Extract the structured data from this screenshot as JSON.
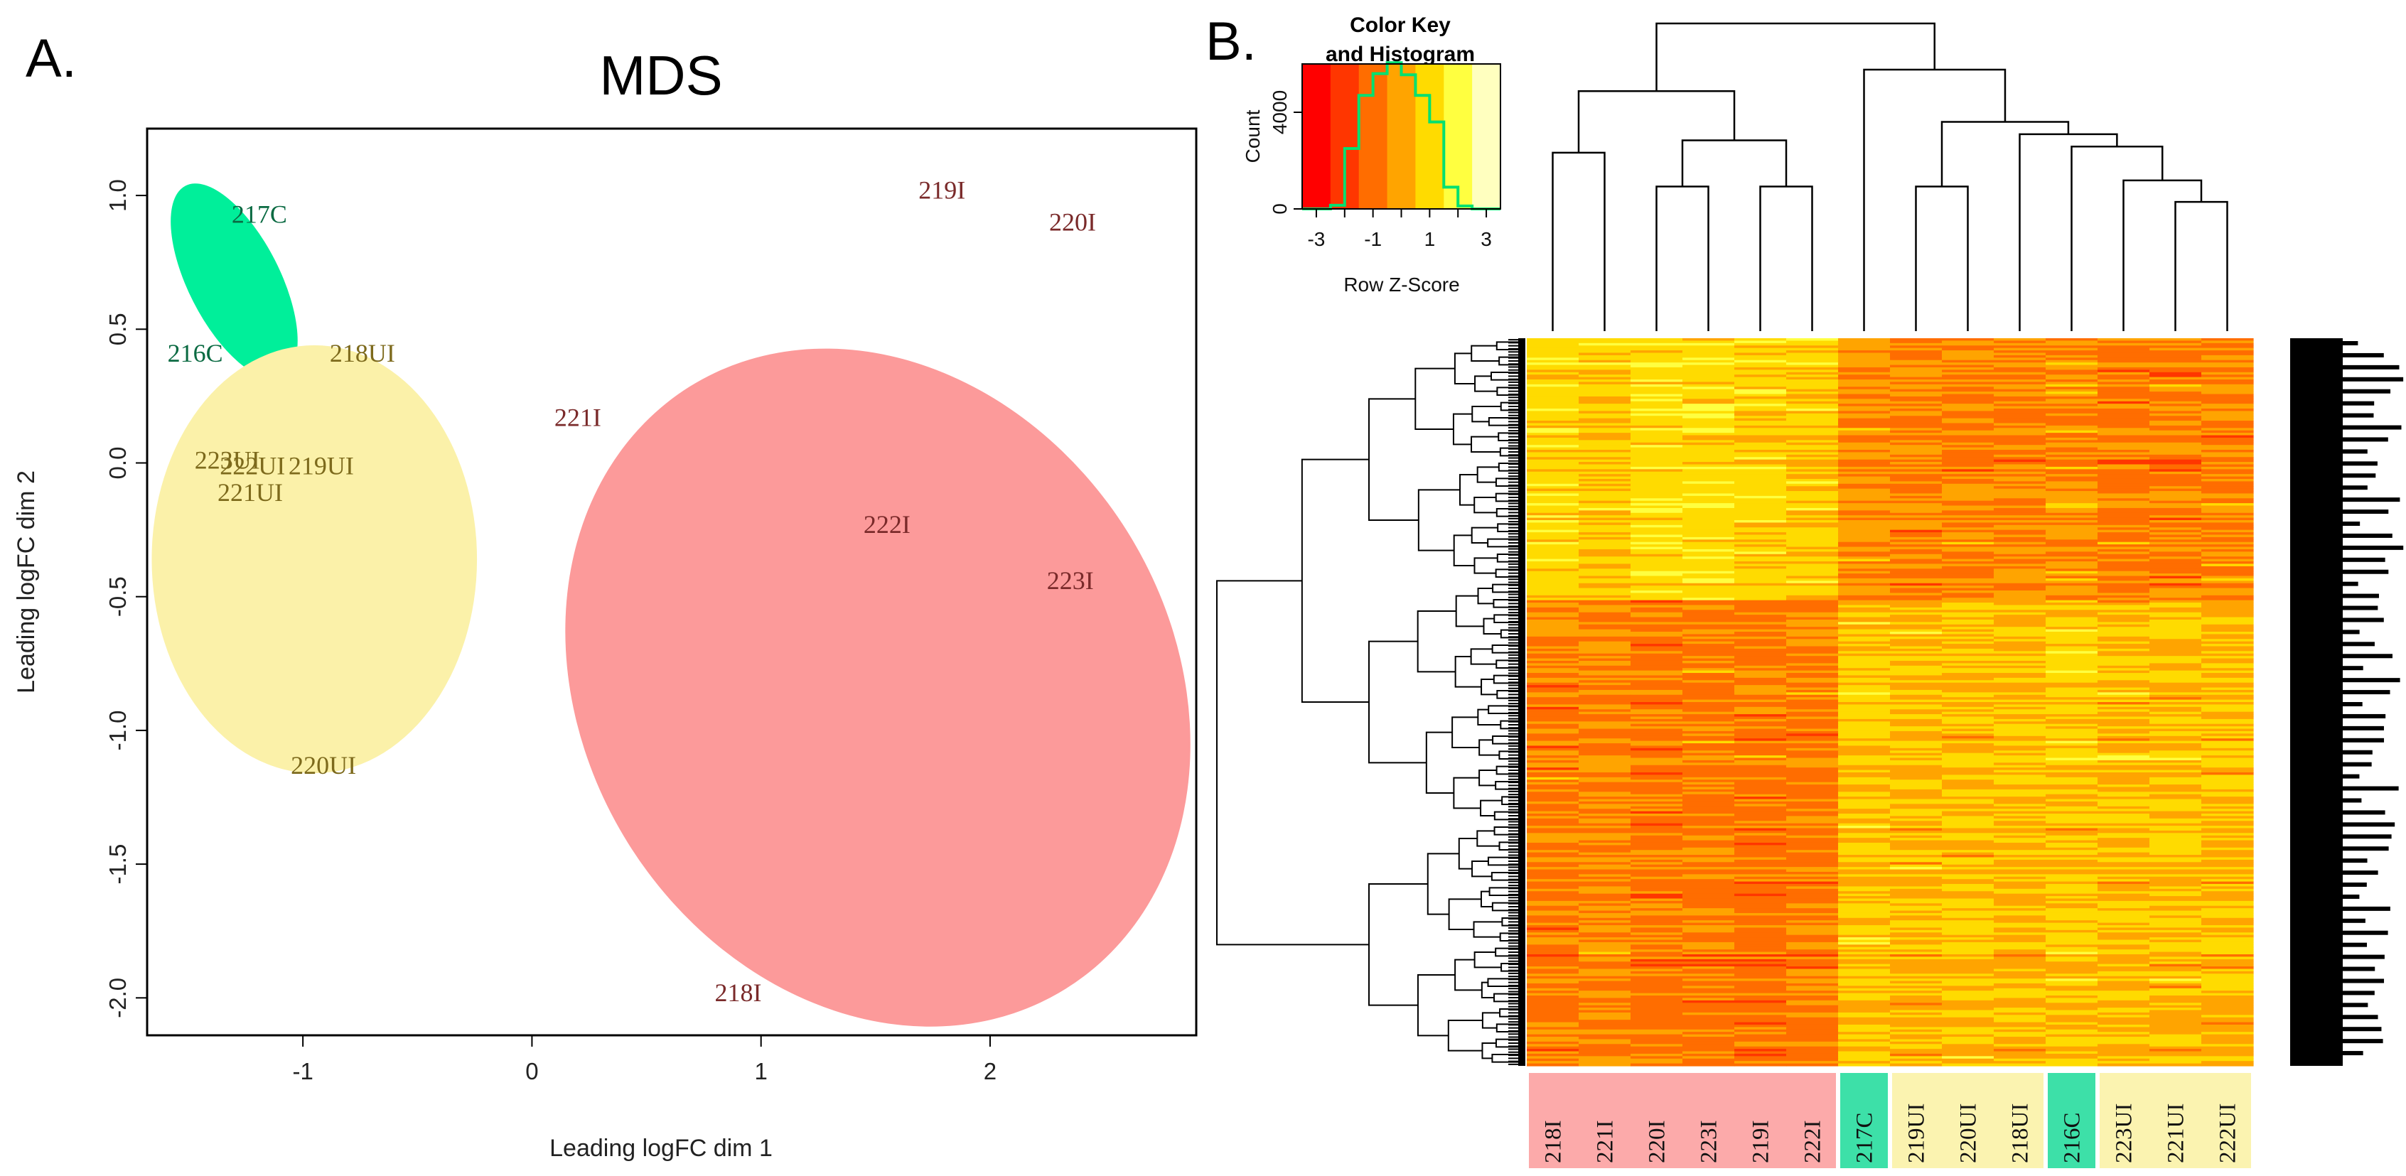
{
  "panels": {
    "a": "A.",
    "b": "B."
  },
  "chart_data": [
    {
      "type": "scatter",
      "title": "MDS",
      "xlabel": "Leading logFC dim 1",
      "ylabel": "Leading logFC dim 2",
      "xlim": [
        -1.68,
        2.9
      ],
      "ylim": [
        -2.14,
        1.25
      ],
      "xticks": [
        -1,
        0,
        1,
        2
      ],
      "yticks": [
        -2.0,
        -1.5,
        -1.0,
        -0.5,
        0.0,
        0.5,
        1.0
      ],
      "colors": {
        "infected": "#fc9a9a",
        "uninfected": "#fbf1a9",
        "control": "#00ef9a",
        "infected_text": "#7a2a2a",
        "uninfected_text": "#7d6a1c",
        "control_text": "#0a6a42"
      },
      "groups": [
        {
          "name": "control",
          "center": [
            -1.3,
            0.68
          ],
          "radii": [
            0.2,
            0.4
          ],
          "angle_deg": -27
        },
        {
          "name": "uninfected",
          "center": [
            -0.95,
            -0.36
          ],
          "radii": [
            0.71,
            0.8
          ],
          "angle_deg": 0
        },
        {
          "name": "infected",
          "center": [
            1.51,
            -0.84
          ],
          "radii": [
            1.55,
            1.1
          ],
          "angle_deg": 58
        }
      ],
      "points": [
        {
          "label": "217C",
          "x": -1.19,
          "y": 0.93,
          "group": "control"
        },
        {
          "label": "216C",
          "x": -1.47,
          "y": 0.41,
          "group": "control"
        },
        {
          "label": "218UI",
          "x": -0.74,
          "y": 0.41,
          "group": "uninfected"
        },
        {
          "label": "223UI",
          "x": -1.33,
          "y": 0.01,
          "group": "uninfected"
        },
        {
          "label": "222UI",
          "x": -1.22,
          "y": -0.01,
          "group": "uninfected"
        },
        {
          "label": "219UI",
          "x": -0.92,
          "y": -0.01,
          "group": "uninfected"
        },
        {
          "label": "221UI",
          "x": -1.23,
          "y": -0.11,
          "group": "uninfected"
        },
        {
          "label": "220UI",
          "x": -0.91,
          "y": -1.13,
          "group": "uninfected"
        },
        {
          "label": "219I",
          "x": 1.79,
          "y": 1.02,
          "group": "infected"
        },
        {
          "label": "220I",
          "x": 2.36,
          "y": 0.9,
          "group": "infected"
        },
        {
          "label": "221I",
          "x": 0.2,
          "y": 0.17,
          "group": "infected"
        },
        {
          "label": "222I",
          "x": 1.55,
          "y": -0.23,
          "group": "infected"
        },
        {
          "label": "223I",
          "x": 2.35,
          "y": -0.44,
          "group": "infected"
        },
        {
          "label": "218I",
          "x": 0.9,
          "y": -1.98,
          "group": "infected"
        }
      ]
    },
    {
      "type": "heatmap",
      "columns": [
        "218I",
        "221I",
        "220I",
        "223I",
        "219I",
        "222I",
        "217C",
        "219UI",
        "220UI",
        "218UI",
        "216C",
        "223UI",
        "221UI",
        "222UI"
      ],
      "column_groups": [
        "infected",
        "infected",
        "infected",
        "infected",
        "infected",
        "infected",
        "control",
        "uninfected",
        "uninfected",
        "uninfected",
        "control",
        "uninfected",
        "uninfected",
        "uninfected"
      ],
      "column_dendrogram": {
        "leaf_order": [
          "218I",
          "221I",
          "220I",
          "223I",
          "219I",
          "222I",
          "217C",
          "219UI",
          "220UI",
          "218UI",
          "216C",
          "223UI",
          "221UI",
          "222UI"
        ],
        "merges": [
          [
            [
              0
            ],
            [
              1
            ],
            0.58
          ],
          [
            [
              2
            ],
            [
              3
            ],
            0.47
          ],
          [
            [
              4
            ],
            [
              5
            ],
            0.47
          ],
          [
            [
              2,
              3
            ],
            [
              4,
              5
            ],
            0.62
          ],
          [
            [
              0,
              1
            ],
            [
              2,
              3,
              4,
              5
            ],
            0.78
          ],
          [
            [
              7
            ],
            [
              8
            ],
            0.47
          ],
          [
            [
              12
            ],
            [
              13
            ],
            0.42
          ],
          [
            [
              11
            ],
            [
              12,
              13
            ],
            0.49
          ],
          [
            [
              10
            ],
            [
              11,
              12,
              13
            ],
            0.6
          ],
          [
            [
              9
            ],
            [
              10,
              11,
              12,
              13
            ],
            0.64
          ],
          [
            [
              7,
              8
            ],
            [
              9,
              10,
              11,
              12,
              13
            ],
            0.68
          ],
          [
            [
              6
            ],
            [
              7,
              8,
              9,
              10,
              11,
              12,
              13
            ],
            0.85
          ],
          [
            [
              0,
              1,
              2,
              3,
              4,
              5
            ],
            [
              6,
              7,
              8,
              9,
              10,
              11,
              12,
              13
            ],
            1.0
          ]
        ]
      },
      "rows_approx": 600,
      "row_pattern": {
        "block_split_fraction": 0.36,
        "upper_block_means": [
          0.85,
          0.55,
          0.95,
          0.9,
          0.75,
          0.65,
          -0.35,
          -0.55,
          -0.45,
          -0.5,
          -0.35,
          -0.6,
          -0.55,
          -0.5
        ],
        "lower_block_means": [
          -0.55,
          -0.4,
          -0.65,
          -0.6,
          -0.7,
          -0.55,
          0.55,
          0.35,
          0.45,
          0.4,
          0.5,
          0.4,
          0.45,
          0.35
        ]
      },
      "color_scale": [
        "#ff0000",
        "#ff3600",
        "#ff6d00",
        "#ffa400",
        "#ffdb00",
        "#ffff40",
        "#ffffbf"
      ],
      "color_key": {
        "title_line1": "Color Key",
        "title_line2": "and Histogram",
        "xlabel": "Row Z-Score",
        "ylabel": "Count",
        "xticks": [
          -3,
          -1,
          1,
          3
        ],
        "xlim": [
          -3.5,
          3.5
        ],
        "yticks": [
          0,
          4000
        ],
        "ylim": [
          0,
          6000
        ],
        "histogram_bins": [
          -3.5,
          -3.0,
          -2.5,
          -2.0,
          -1.5,
          -1.0,
          -0.5,
          0.0,
          0.5,
          1.0,
          1.5,
          2.0,
          2.5,
          3.0,
          3.5
        ],
        "histogram_counts": [
          0,
          0,
          150,
          2500,
          4700,
          5600,
          6050,
          5550,
          4700,
          3600,
          900,
          120,
          0,
          0
        ],
        "histogram_color": "#00e070"
      }
    }
  ]
}
